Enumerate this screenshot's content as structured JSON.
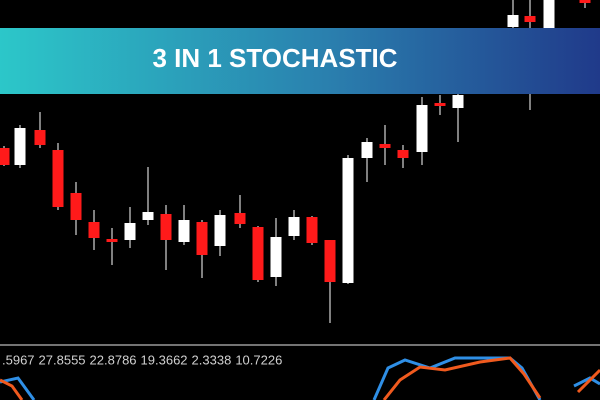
{
  "banner": {
    "title": "3 IN 1 STOCHASTIC"
  },
  "indicator": {
    "values": [
      ".5967",
      "27.8555",
      "22.8786",
      "19.3662",
      "2.3338",
      "10.7226"
    ]
  }
}
